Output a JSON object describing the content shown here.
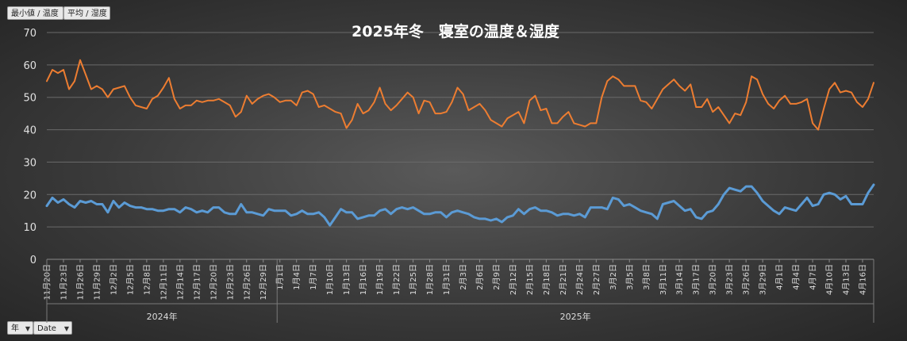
{
  "filters": {
    "top": [
      "最小値 / 温度",
      "平均 / 湿度"
    ],
    "bottom": [
      "年",
      "Date"
    ]
  },
  "chart_data": {
    "type": "line",
    "title": "2025年冬　寝室の温度＆湿度",
    "ylim": [
      0,
      70
    ],
    "yticks": [
      0,
      10,
      20,
      30,
      40,
      50,
      60,
      70
    ],
    "grid": true,
    "x_labels": [
      "11月20日",
      "11月23日",
      "11月26日",
      "11月29日",
      "12月2日",
      "12月5日",
      "12月8日",
      "12月11日",
      "12月14日",
      "12月17日",
      "12月20日",
      "12月23日",
      "12月26日",
      "12月29日",
      "1月1日",
      "1月4日",
      "1月7日",
      "1月10日",
      "1月13日",
      "1月16日",
      "1月19日",
      "1月22日",
      "1月25日",
      "1月28日",
      "1月31日",
      "2月3日",
      "2月6日",
      "2月9日",
      "2月12日",
      "2月15日",
      "2月18日",
      "2月21日",
      "2月24日",
      "2月27日",
      "3月2日",
      "3月5日",
      "3月8日",
      "3月11日",
      "3月14日",
      "3月17日",
      "3月20日",
      "3月23日",
      "3月26日",
      "3月29日",
      "4月1日",
      "4月4日",
      "4月7日",
      "4月10日",
      "4月13日",
      "4月16日"
    ],
    "year_groups": [
      {
        "label": "2024年",
        "start": 0,
        "end": 41
      },
      {
        "label": "2025年",
        "start": 42,
        "end": 149
      }
    ],
    "series": [
      {
        "color": "#ed7d31",
        "values": [
          55,
          58.5,
          57.5,
          58.5,
          52.5,
          55,
          61.5,
          57,
          52.5,
          53.5,
          52.5,
          50,
          52.5,
          53,
          53.5,
          50,
          47.5,
          47,
          46.5,
          49.5,
          50.5,
          53,
          56,
          49.5,
          46.5,
          47.5,
          47.5,
          49,
          48.5,
          49,
          49,
          49.5,
          48.5,
          47.5,
          44,
          45.5,
          50.5,
          48,
          49.5,
          50.5,
          51,
          50,
          48.5,
          49,
          49,
          47.5,
          51.5,
          52,
          51,
          47,
          47.5,
          46.5,
          45.5,
          45,
          40.5,
          43,
          48,
          45,
          46,
          48.5,
          53,
          48,
          46,
          47.5,
          49.5,
          51.5,
          50,
          45,
          49,
          48.5,
          45,
          45,
          45.5,
          48.5,
          53,
          51,
          46,
          47,
          48,
          46,
          43,
          42,
          41,
          43.5,
          44.5,
          45.5,
          42,
          49,
          50.5,
          46,
          46.5,
          42,
          42,
          44,
          45.5,
          42,
          41.5,
          41,
          42,
          42,
          50,
          55,
          56.5,
          55.5,
          53.5,
          53.5,
          53.5,
          49,
          48.5,
          46.5,
          49.5,
          52.5,
          54,
          55.5,
          53.5,
          52,
          54,
          47,
          47,
          49.5,
          45.5,
          47,
          44.5,
          42,
          45,
          44.5,
          48.5,
          56.5,
          55.5,
          51,
          48,
          46.5,
          49,
          50.5,
          48,
          48,
          48.5,
          49.5,
          42,
          40,
          46.5,
          52.5,
          54.5,
          51.5,
          52,
          51.5,
          48.5,
          47,
          49.5,
          54.5
        ]
      },
      {
        "color": "#5b9bd5",
        "values": [
          16.5,
          19,
          17.5,
          18.5,
          17,
          16,
          18,
          17.5,
          18,
          17,
          17,
          14.5,
          18,
          16,
          17.5,
          16.5,
          16,
          16,
          15.5,
          15.5,
          15,
          15,
          15.5,
          15.5,
          14.5,
          16,
          15.5,
          14.5,
          15,
          14.5,
          16,
          16,
          14.5,
          14,
          14,
          17,
          14.5,
          14.5,
          14,
          13.5,
          15.5,
          15,
          15,
          15,
          13.5,
          14,
          15,
          14,
          14,
          14.5,
          13,
          10.5,
          13,
          15.5,
          14.5,
          14.5,
          12.5,
          13,
          13.5,
          13.5,
          15,
          15.5,
          14,
          15.5,
          16,
          15.5,
          16,
          15,
          14,
          14,
          14.5,
          14.5,
          13,
          14.5,
          15,
          14.5,
          14,
          13,
          12.5,
          12.5,
          12,
          12.5,
          11.5,
          13,
          13.5,
          15.5,
          14,
          15.5,
          16,
          15,
          15,
          14.5,
          13.5,
          14,
          14,
          13.5,
          14,
          13,
          16,
          16,
          16,
          15.5,
          19,
          18.5,
          16.5,
          17,
          16,
          15,
          14.5,
          14,
          12.5,
          17,
          17.5,
          18,
          16.5,
          15,
          15.5,
          13,
          12.5,
          14.5,
          15,
          17,
          20,
          22,
          21.5,
          21,
          22.5,
          22.5,
          20.5,
          18,
          16.5,
          15,
          14,
          16,
          15.5,
          15,
          17,
          19,
          16.5,
          17,
          20,
          20.5,
          20,
          18.5,
          19.5,
          17,
          17,
          17,
          20.5,
          23
        ]
      }
    ]
  }
}
